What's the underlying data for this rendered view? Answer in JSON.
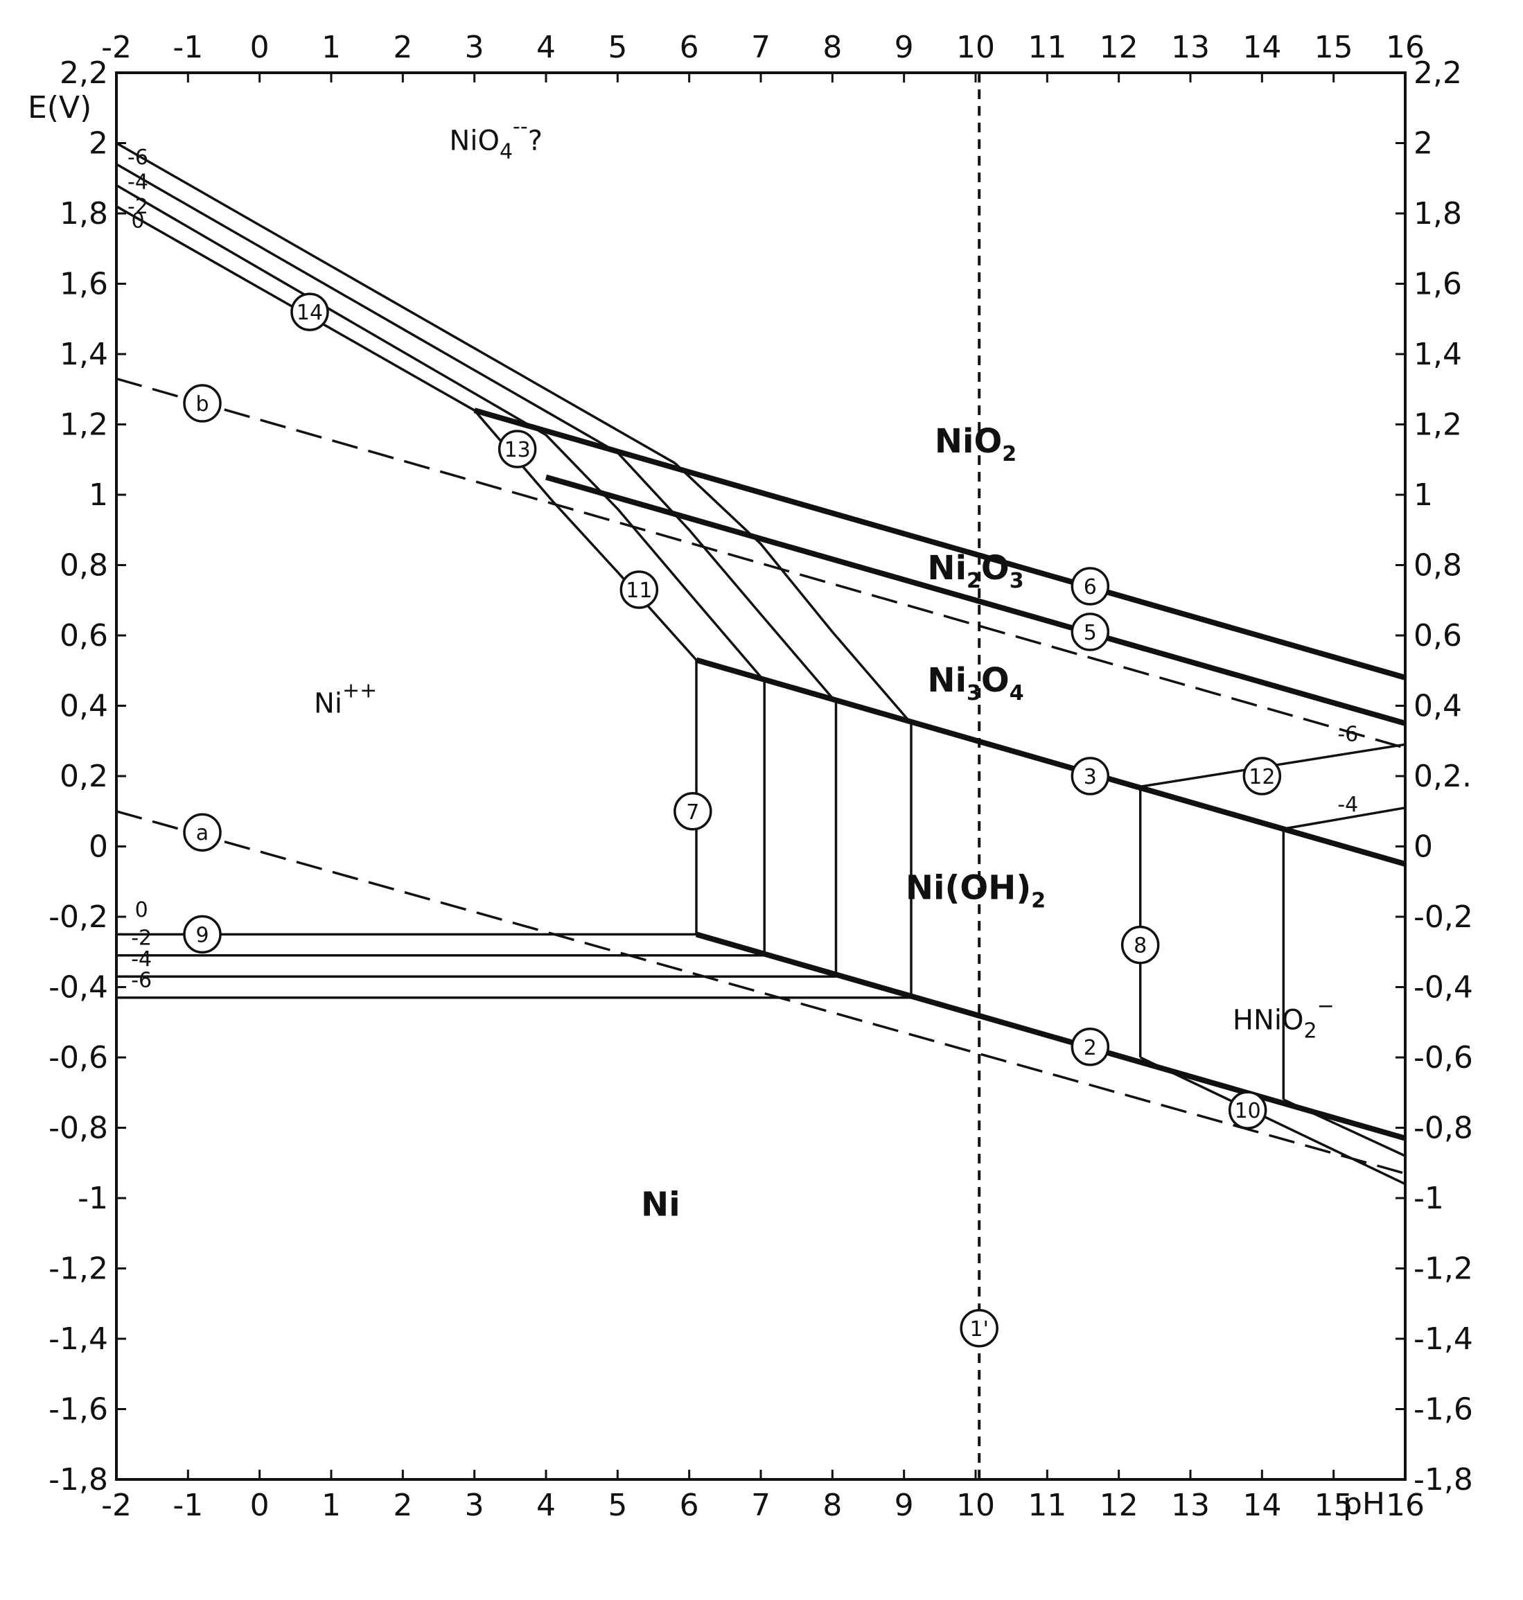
{
  "chart_data": {
    "type": "diagram",
    "xlabel": "pH",
    "ylabel": "E(V)",
    "xlim": [
      -2,
      16
    ],
    "ylim": [
      -1.8,
      2.2
    ],
    "x_ticks": [
      "-2",
      "-1",
      "0",
      "1",
      "2",
      "3",
      "4",
      "5",
      "6",
      "7",
      "8",
      "9",
      "10",
      "11",
      "12",
      "13",
      "14",
      "15",
      "16"
    ],
    "y_ticks_left": [
      "2,2",
      "2",
      "1,8",
      "1,6",
      "1,4",
      "1,2",
      "1",
      "0,8",
      "0,6",
      "0,4",
      "0,2",
      "0",
      "-0,2",
      "-0,4",
      "-0,6",
      "-0,8",
      "-1",
      "-1,2",
      "-1,4",
      "-1,6",
      "-1,8"
    ],
    "y_ticks_right": [
      "2,2",
      "2",
      "1,8",
      "1,6",
      "1,4",
      "1,2",
      "1",
      "0,8",
      "0,6",
      "0,4",
      "0,2.",
      "0",
      "-0,2",
      "-0,4",
      "-0,6",
      "-0,8",
      "-1",
      "-1,2",
      "-1,4",
      "-1,6",
      "-1,8"
    ],
    "regions": [
      {
        "label": "NiO",
        "sub": "2",
        "style": "bold",
        "x": 10,
        "y": 1.12
      },
      {
        "label": "Ni",
        "sub": "2",
        "label2": "O",
        "sub2": "3",
        "style": "bold",
        "x": 10,
        "y": 0.76
      },
      {
        "label": "Ni",
        "sub": "3",
        "label2": "O",
        "sub2": "4",
        "style": "bold",
        "x": 10,
        "y": 0.44
      },
      {
        "label": "Ni(OH)",
        "sub": "2",
        "style": "bold",
        "x": 10,
        "y": -0.15
      },
      {
        "label": "Ni",
        "style": "bold",
        "x": 5.6,
        "y": -1.05
      },
      {
        "label": "Ni",
        "sup": "++",
        "style": "plain",
        "x": 1.2,
        "y": 0.38
      },
      {
        "label": "NiO",
        "sub": "4",
        "sup": "--",
        "suffix": "?",
        "style": "plain",
        "x": 3.3,
        "y": 1.98
      },
      {
        "label": "HNiO",
        "sub": "2",
        "sup": "−",
        "style": "plain",
        "x": 14.3,
        "y": -0.52
      }
    ],
    "line_labels": [
      {
        "id": "14",
        "x": 0.7,
        "y": 1.52
      },
      {
        "id": "b",
        "x": -0.8,
        "y": 1.26
      },
      {
        "id": "13",
        "x": 3.6,
        "y": 1.13
      },
      {
        "id": "11",
        "x": 5.3,
        "y": 0.73
      },
      {
        "id": "6",
        "x": 11.6,
        "y": 0.74
      },
      {
        "id": "5",
        "x": 11.6,
        "y": 0.61
      },
      {
        "id": "3",
        "x": 11.6,
        "y": 0.2
      },
      {
        "id": "12",
        "x": 14.0,
        "y": 0.2
      },
      {
        "id": "7",
        "x": 6.05,
        "y": 0.1
      },
      {
        "id": "a",
        "x": -0.8,
        "y": 0.04
      },
      {
        "id": "9",
        "x": -0.8,
        "y": -0.25
      },
      {
        "id": "8",
        "x": 12.3,
        "y": -0.28
      },
      {
        "id": "2",
        "x": 11.6,
        "y": -0.57
      },
      {
        "id": "10",
        "x": 13.8,
        "y": -0.75
      },
      {
        "id": "1'",
        "x": 10.05,
        "y": -1.37
      }
    ],
    "concentration_labels": [
      {
        "text": "0",
        "x": -1.65,
        "y": -0.2
      },
      {
        "text": "-2",
        "x": -1.65,
        "y": -0.28
      },
      {
        "text": "-4",
        "x": -1.65,
        "y": -0.34
      },
      {
        "text": "-6",
        "x": -1.65,
        "y": -0.4
      },
      {
        "text": "-6",
        "x": 15.2,
        "y": 0.3
      },
      {
        "text": "-4",
        "x": 15.2,
        "y": 0.1
      },
      {
        "text": "0",
        "x": -1.7,
        "y": 1.76
      },
      {
        "text": "-2",
        "x": -1.7,
        "y": 1.8
      },
      {
        "text": "-4",
        "x": -1.7,
        "y": 1.87
      },
      {
        "text": "-6",
        "x": -1.7,
        "y": 1.94
      }
    ],
    "lines": [
      {
        "id": "a",
        "style": "dash",
        "points": [
          [
            -2,
            0.1
          ],
          [
            16,
            -0.93
          ]
        ]
      },
      {
        "id": "b",
        "style": "dash",
        "points": [
          [
            -2,
            1.33
          ],
          [
            16,
            0.28
          ]
        ]
      },
      {
        "id": "1'",
        "style": "vdash",
        "points": [
          [
            10.05,
            2.2
          ],
          [
            10.05,
            -1.8
          ]
        ]
      },
      {
        "id": "6",
        "style": "thick",
        "points": [
          [
            3.0,
            1.24
          ],
          [
            16,
            0.48
          ]
        ]
      },
      {
        "id": "5",
        "style": "thick",
        "points": [
          [
            4.0,
            1.05
          ],
          [
            16,
            0.35
          ]
        ]
      },
      {
        "id": "3",
        "style": "thick",
        "points": [
          [
            6.1,
            0.53
          ],
          [
            16,
            -0.05
          ]
        ]
      },
      {
        "id": "2",
        "style": "thick",
        "points": [
          [
            6.1,
            -0.25
          ],
          [
            16,
            -0.83
          ]
        ]
      },
      {
        "id": "14-0",
        "style": "thin",
        "points": [
          [
            -2,
            1.82
          ],
          [
            3.0,
            1.24
          ]
        ]
      },
      {
        "id": "14-2",
        "style": "thin",
        "points": [
          [
            -2,
            1.88
          ],
          [
            4.0,
            1.17
          ]
        ]
      },
      {
        "id": "14-4",
        "style": "thin",
        "points": [
          [
            -2,
            1.94
          ],
          [
            5.0,
            1.12
          ]
        ]
      },
      {
        "id": "14-6",
        "style": "thin",
        "points": [
          [
            -2,
            2.0
          ],
          [
            5.8,
            1.09
          ]
        ]
      },
      {
        "id": "13-0",
        "style": "thin",
        "points": [
          [
            3.0,
            1.24
          ],
          [
            4.1,
            0.98
          ],
          [
            5.0,
            0.78
          ],
          [
            6.1,
            0.53
          ]
        ]
      },
      {
        "id": "13-2",
        "style": "thin",
        "points": [
          [
            4.0,
            1.17
          ],
          [
            5.0,
            0.96
          ],
          [
            6.0,
            0.72
          ],
          [
            7.05,
            0.47
          ]
        ]
      },
      {
        "id": "13-4",
        "style": "thin",
        "points": [
          [
            5.0,
            1.12
          ],
          [
            6.0,
            0.9
          ],
          [
            7.0,
            0.66
          ],
          [
            8.05,
            0.41
          ]
        ]
      },
      {
        "id": "13-6",
        "style": "thin",
        "points": [
          [
            5.8,
            1.09
          ],
          [
            7.0,
            0.86
          ],
          [
            8.0,
            0.61
          ],
          [
            9.1,
            0.35
          ]
        ]
      },
      {
        "id": "9-0",
        "style": "thin",
        "points": [
          [
            -2,
            -0.25
          ],
          [
            6.1,
            -0.25
          ]
        ]
      },
      {
        "id": "9-2",
        "style": "thin",
        "points": [
          [
            -2,
            -0.31
          ],
          [
            7.05,
            -0.31
          ]
        ]
      },
      {
        "id": "9-4",
        "style": "thin",
        "points": [
          [
            -2,
            -0.37
          ],
          [
            8.05,
            -0.37
          ]
        ]
      },
      {
        "id": "9-6",
        "style": "thin",
        "points": [
          [
            -2,
            -0.43
          ],
          [
            9.1,
            -0.43
          ]
        ]
      },
      {
        "id": "7-0",
        "style": "thin",
        "points": [
          [
            6.1,
            0.53
          ],
          [
            6.1,
            -0.25
          ]
        ]
      },
      {
        "id": "7-2",
        "style": "thin",
        "points": [
          [
            7.05,
            0.47
          ],
          [
            7.05,
            -0.31
          ]
        ]
      },
      {
        "id": "7-4",
        "style": "thin",
        "points": [
          [
            8.05,
            0.41
          ],
          [
            8.05,
            -0.37
          ]
        ]
      },
      {
        "id": "7-6",
        "style": "thin",
        "points": [
          [
            9.1,
            0.35
          ],
          [
            9.1,
            -0.43
          ]
        ]
      },
      {
        "id": "8-6",
        "style": "thin",
        "points": [
          [
            12.3,
            0.17
          ],
          [
            12.3,
            -0.6
          ]
        ]
      },
      {
        "id": "8-4",
        "style": "thin",
        "points": [
          [
            14.3,
            0.05
          ],
          [
            14.3,
            -0.72
          ]
        ]
      },
      {
        "id": "12-6",
        "style": "thin",
        "points": [
          [
            12.3,
            0.17
          ],
          [
            16,
            0.29
          ]
        ]
      },
      {
        "id": "12-4",
        "style": "thin",
        "points": [
          [
            14.3,
            0.05
          ],
          [
            16,
            0.11
          ]
        ]
      },
      {
        "id": "10-6",
        "style": "thin",
        "points": [
          [
            12.3,
            -0.6
          ],
          [
            16,
            -0.96
          ]
        ]
      },
      {
        "id": "10-4",
        "style": "thin",
        "points": [
          [
            14.3,
            -0.72
          ],
          [
            16,
            -0.88
          ]
        ]
      }
    ]
  }
}
